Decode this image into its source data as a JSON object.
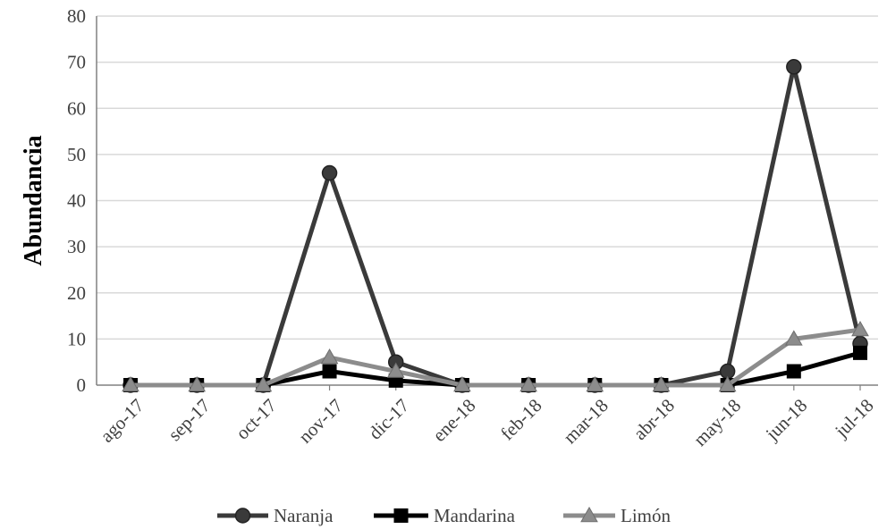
{
  "chart_data": {
    "type": "line",
    "title": "",
    "xlabel": "",
    "ylabel": "Abundancia",
    "ylim": [
      0,
      80
    ],
    "yticks": [
      0,
      10,
      20,
      30,
      40,
      50,
      60,
      70,
      80
    ],
    "grid": true,
    "legend_position": "bottom",
    "categories": [
      "ago-17",
      "sep-17",
      "oct-17",
      "nov-17",
      "dic-17",
      "ene-18",
      "feb-18",
      "mar-18",
      "abr-18",
      "may-18",
      "jun-18",
      "jul-18"
    ],
    "series": [
      {
        "name": "Naranja",
        "marker": "circle",
        "color": "#3a3a3a",
        "values": [
          0,
          0,
          0,
          46,
          5,
          0,
          0,
          0,
          0,
          3,
          69,
          9
        ]
      },
      {
        "name": "Mandarina",
        "marker": "square",
        "color": "#000000",
        "values": [
          0,
          0,
          0,
          3,
          1,
          0,
          0,
          0,
          0,
          0,
          3,
          7
        ]
      },
      {
        "name": "Limón",
        "marker": "triangle",
        "color": "#8c8c8c",
        "values": [
          0,
          0,
          0,
          6,
          3,
          0,
          0,
          0,
          0,
          0,
          10,
          12
        ]
      }
    ]
  }
}
